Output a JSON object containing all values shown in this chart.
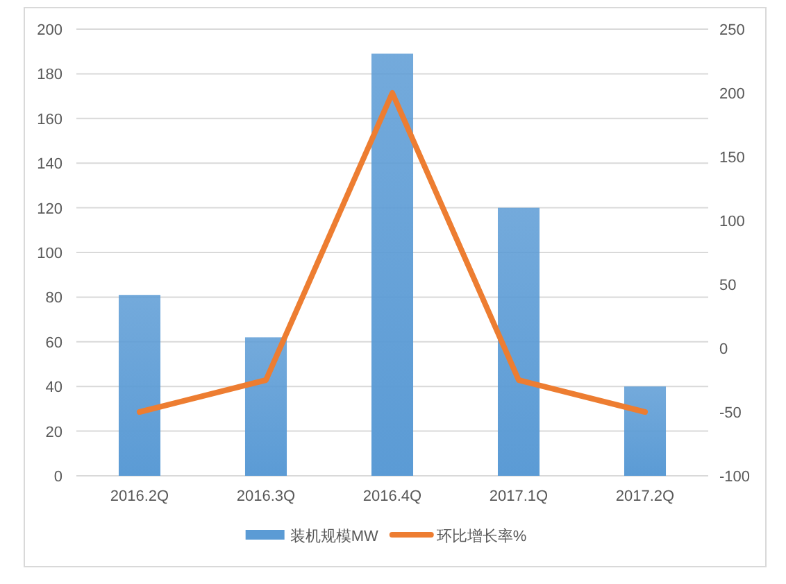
{
  "chart_data": {
    "type": "bar",
    "categories": [
      "2016.2Q",
      "2016.3Q",
      "2016.4Q",
      "2017.1Q",
      "2017.2Q"
    ],
    "series": [
      {
        "name": "装机规模MW",
        "color": "#5b9bd5",
        "values": [
          81,
          62,
          189,
          120,
          40
        ]
      },
      {
        "name": "环比增长率%",
        "type": "line",
        "axis": "y2",
        "color": "#ed7d31",
        "values": [
          -50,
          -25,
          200,
          -25,
          -50
        ]
      }
    ],
    "ylim": [
      0,
      200
    ],
    "yticks": [
      0,
      20,
      40,
      60,
      80,
      100,
      120,
      140,
      160,
      180,
      200
    ],
    "y2lim": [
      -100,
      250
    ],
    "y2ticks": [
      -100,
      -50,
      0,
      50,
      100,
      150,
      200,
      250
    ],
    "grid": "y",
    "legend": "bottom",
    "marker": "none",
    "line_style": "solid"
  }
}
